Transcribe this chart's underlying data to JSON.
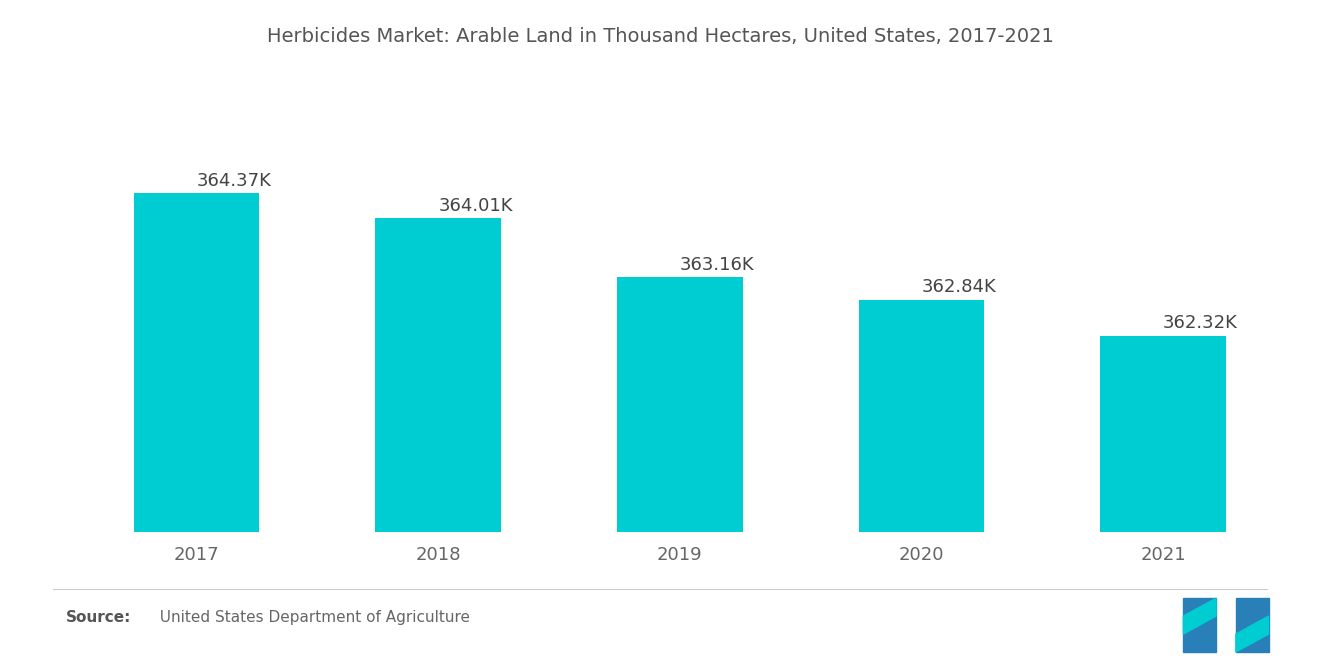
{
  "title": "Herbicides Market: Arable Land in Thousand Hectares, United States, 2017-2021",
  "categories": [
    "2017",
    "2018",
    "2019",
    "2020",
    "2021"
  ],
  "values": [
    364.37,
    364.01,
    363.16,
    362.84,
    362.32
  ],
  "labels": [
    "364.37K",
    "364.01K",
    "363.16K",
    "362.84K",
    "362.32K"
  ],
  "bar_color": "#00CDD1",
  "background_color": "#ffffff",
  "title_color": "#555555",
  "label_color": "#444444",
  "tick_color": "#666666",
  "ylim_min": 359.5,
  "ylim_max": 366.0,
  "title_fontsize": 14,
  "label_fontsize": 13,
  "tick_fontsize": 13,
  "source_fontsize": 11,
  "bar_width": 0.52
}
